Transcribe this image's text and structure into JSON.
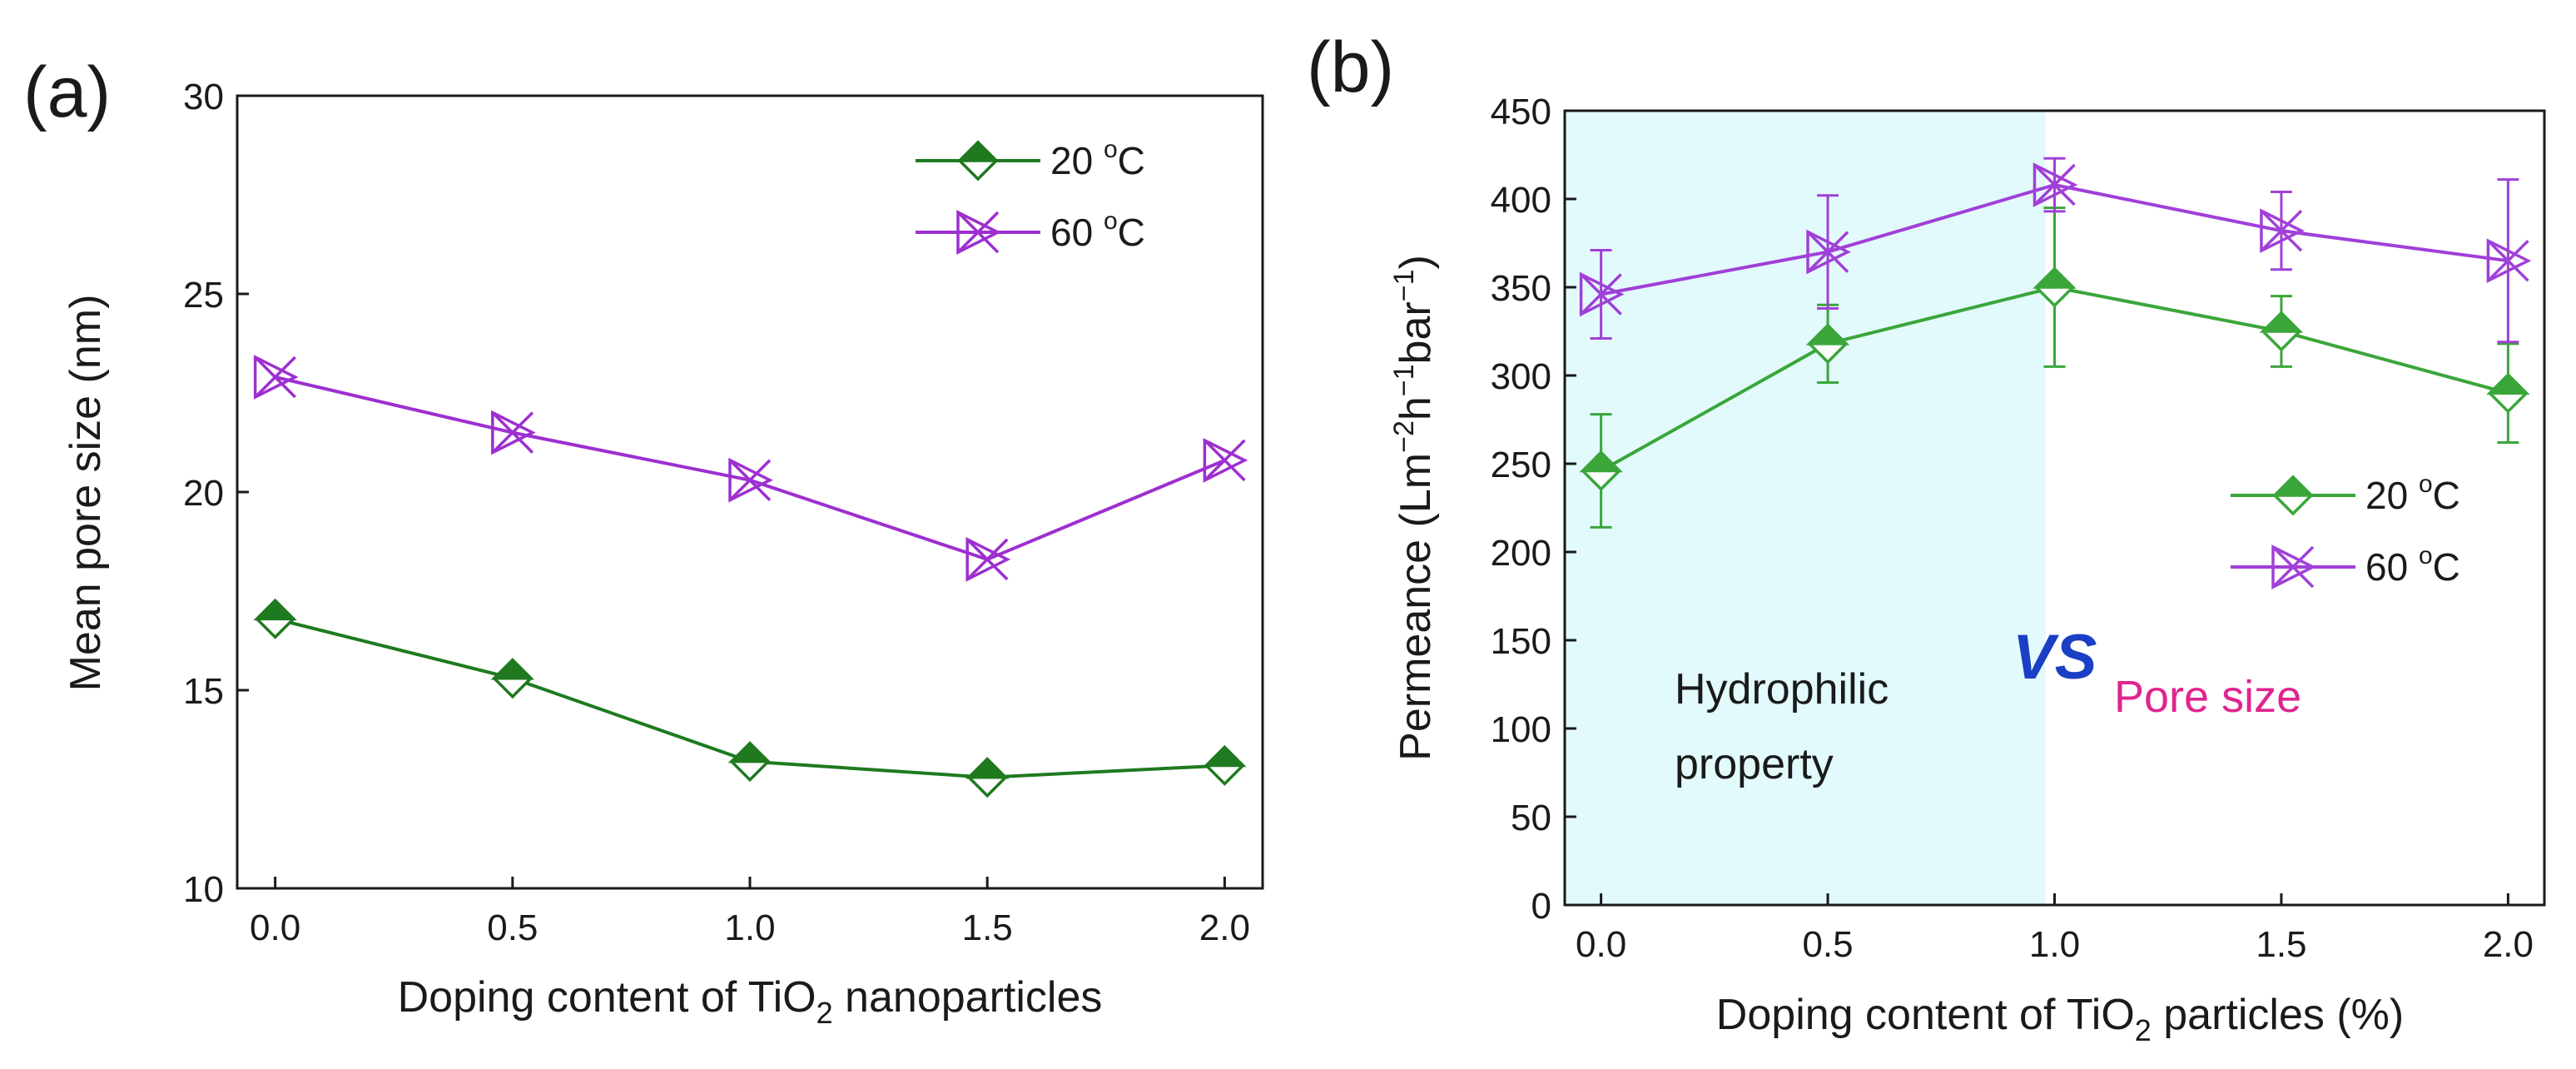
{
  "chart_data": [
    {
      "id": "a",
      "type": "line",
      "panel_label": "(a)",
      "xlabel": {
        "pre": "Doping content of TiO",
        "sub": "2",
        "post": " nanoparticles"
      },
      "ylabel": "Mean pore size (nm)",
      "xlim": [
        -0.08,
        2.08
      ],
      "ylim": [
        10,
        30
      ],
      "xticks": [
        0,
        0.5,
        1,
        1.5,
        2
      ],
      "xtick_labels": [
        "0.0",
        "0.5",
        "1.0",
        "1.5",
        "2.0"
      ],
      "yticks": [
        10,
        15,
        20,
        25,
        30
      ],
      "ytick_labels": [
        "10",
        "15",
        "20",
        "25",
        "30"
      ],
      "legend": {
        "position": "top-right"
      },
      "series": [
        {
          "name": "20 °C",
          "label_pre": "20 ",
          "label_sup": "o",
          "label_post": "C",
          "color": "#1f7a1f",
          "marker": "diamond-half",
          "x": [
            0,
            0.5,
            1,
            1.5,
            2
          ],
          "y": [
            16.8,
            15.3,
            13.2,
            12.8,
            13.1
          ]
        },
        {
          "name": "60 °C",
          "label_pre": "60 ",
          "label_sup": "o",
          "label_post": "C",
          "color": "#9d2fd0",
          "marker": "star-tri",
          "x": [
            0,
            0.5,
            1,
            1.5,
            2
          ],
          "y": [
            22.9,
            21.5,
            20.3,
            18.3,
            20.8
          ]
        }
      ]
    },
    {
      "id": "b",
      "type": "line",
      "panel_label": "(b)",
      "xlabel": {
        "pre": "Doping content of TiO",
        "sub": "2",
        "post": " particles (%)"
      },
      "ylabel": {
        "pre": "Permeance (Lm",
        "s1": "−2",
        "mid1": "h",
        "s2": "−1",
        "mid2": "bar",
        "s3": "−1",
        "post": ")"
      },
      "xlim": [
        -0.08,
        2.08
      ],
      "ylim": [
        0,
        450
      ],
      "xticks": [
        0,
        0.5,
        1,
        1.5,
        2
      ],
      "xtick_labels": [
        "0.0",
        "0.5",
        "1.0",
        "1.5",
        "2.0"
      ],
      "yticks": [
        0,
        50,
        100,
        150,
        200,
        250,
        300,
        350,
        400,
        450
      ],
      "ytick_labels": [
        "0",
        "50",
        "100",
        "150",
        "200",
        "250",
        "300",
        "350",
        "400",
        "450"
      ],
      "legend": {
        "position": "center-right"
      },
      "shaded_region": {
        "x_from": -0.08,
        "x_to": 0.98,
        "color": "#e3fafc"
      },
      "annotations": {
        "hydrophilic_line1": "Hydrophilic",
        "hydrophilic_line2": "property",
        "vs": "VS",
        "pore_size": "Pore size",
        "vs_color": "#1b3fc4",
        "pore_color": "#e0248f"
      },
      "series": [
        {
          "name": "20 °C",
          "label_pre": "20 ",
          "label_sup": "o",
          "label_post": "C",
          "color": "#3aa63a",
          "marker": "diamond-half",
          "x": [
            0,
            0.5,
            1,
            1.5,
            2
          ],
          "y": [
            246,
            318,
            350,
            325,
            290
          ],
          "err": [
            32,
            22,
            45,
            20,
            28
          ]
        },
        {
          "name": "60 °C",
          "label_pre": "60 ",
          "label_sup": "o",
          "label_post": "C",
          "color": "#a040d8",
          "marker": "star-tri",
          "x": [
            0,
            0.5,
            1,
            1.5,
            2
          ],
          "y": [
            346,
            370,
            408,
            382,
            365
          ],
          "err": [
            25,
            32,
            15,
            22,
            46
          ]
        }
      ]
    }
  ]
}
